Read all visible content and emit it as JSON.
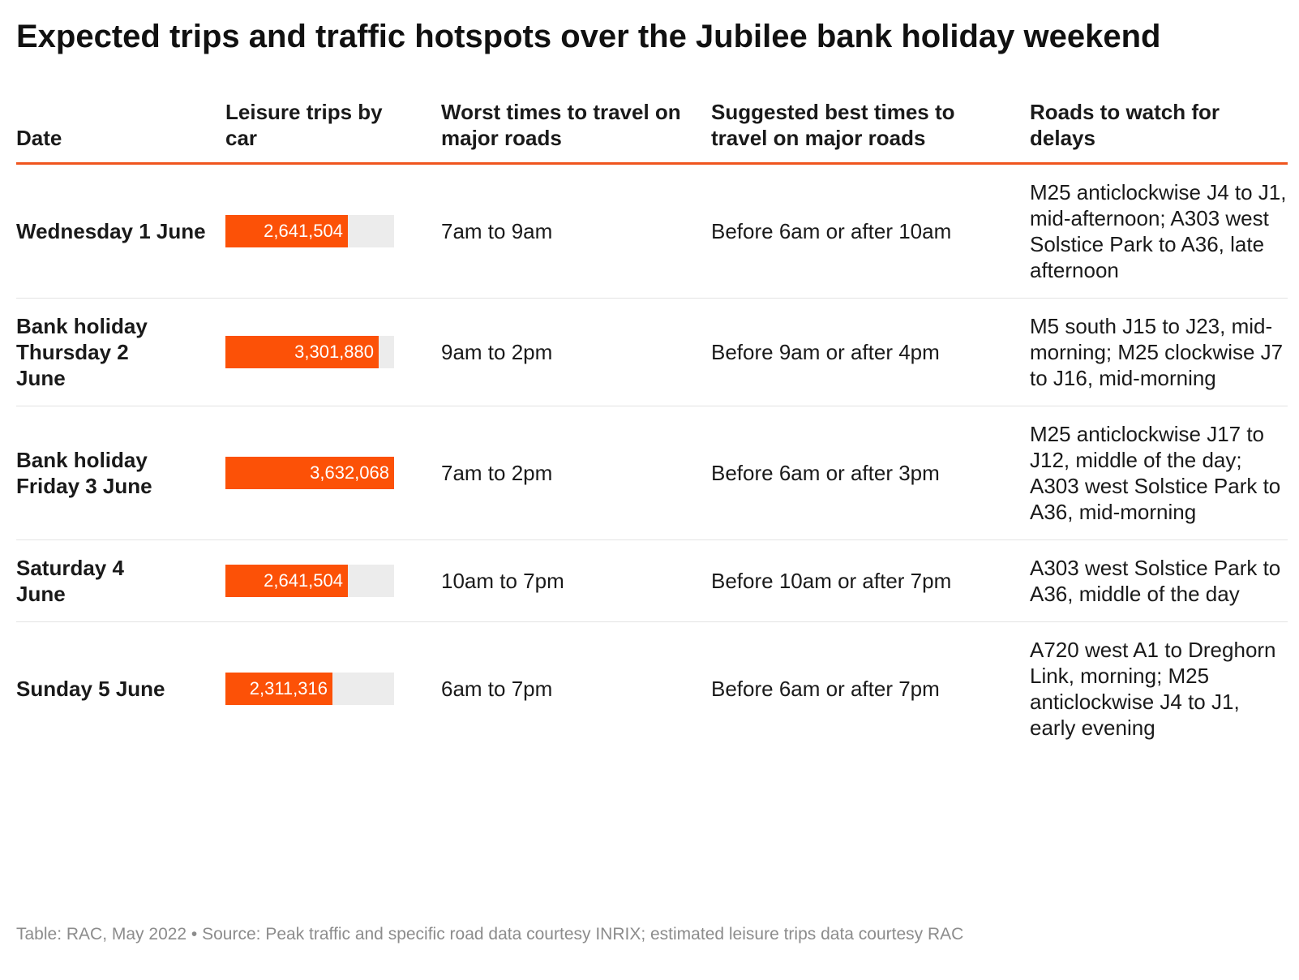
{
  "title": "Expected trips and traffic hotspots over the Jubilee bank holiday weekend",
  "colors": {
    "accent": "#fc5107",
    "rule": "#f0551e",
    "track": "#ececec"
  },
  "chart_data": {
    "type": "table",
    "title": "Expected trips and traffic hotspots over the Jubilee bank holiday weekend",
    "columns": [
      "Date",
      "Leisure trips by car",
      "Worst times to travel on major roads",
      "Suggested best times to travel on major roads",
      "Roads to watch for delays"
    ],
    "bar_column": "Leisure trips by car",
    "bar_max": 3632068,
    "rows": [
      {
        "date": "Wednesday 1 June",
        "trips": 2641504,
        "trips_label": "2,641,504",
        "worst": "7am to 9am",
        "best": "Before 6am or after 10am",
        "roads": "M25 anticlockwise J4 to J1, mid-afternoon; A303 west Solstice Park to A36, late afternoon"
      },
      {
        "date": "Bank holiday Thursday 2 June",
        "trips": 3301880,
        "trips_label": "3,301,880",
        "worst": "9am to 2pm",
        "best": "Before 9am or after 4pm",
        "roads": "M5 south J15 to J23, mid-morning; M25 clockwise J7 to J16, mid-morning"
      },
      {
        "date": "Bank holiday Friday 3 June",
        "trips": 3632068,
        "trips_label": "3,632,068",
        "worst": "7am to 2pm",
        "best": "Before 6am or after 3pm",
        "roads": "M25 anticlockwise J17 to J12, middle of the day; A303 west Solstice Park to A36, mid-morning"
      },
      {
        "date": "Saturday 4 June",
        "trips": 2641504,
        "trips_label": "2,641,504",
        "worst": "10am to 7pm",
        "best": "Before 10am or after 7pm",
        "roads": "A303 west Solstice Park to A36, middle of the day"
      },
      {
        "date": "Sunday 5 June",
        "trips": 2311316,
        "trips_label": "2,311,316",
        "worst": "6am to 7pm",
        "best": "Before 6am or after 7pm",
        "roads": "A720 west A1 to Dreghorn Link, morning; M25 anticlockwise J4 to J1, early evening"
      }
    ]
  },
  "footer": "Table: RAC, May 2022 • Source: Peak traffic and specific road data courtesy INRIX; estimated leisure trips data courtesy RAC"
}
